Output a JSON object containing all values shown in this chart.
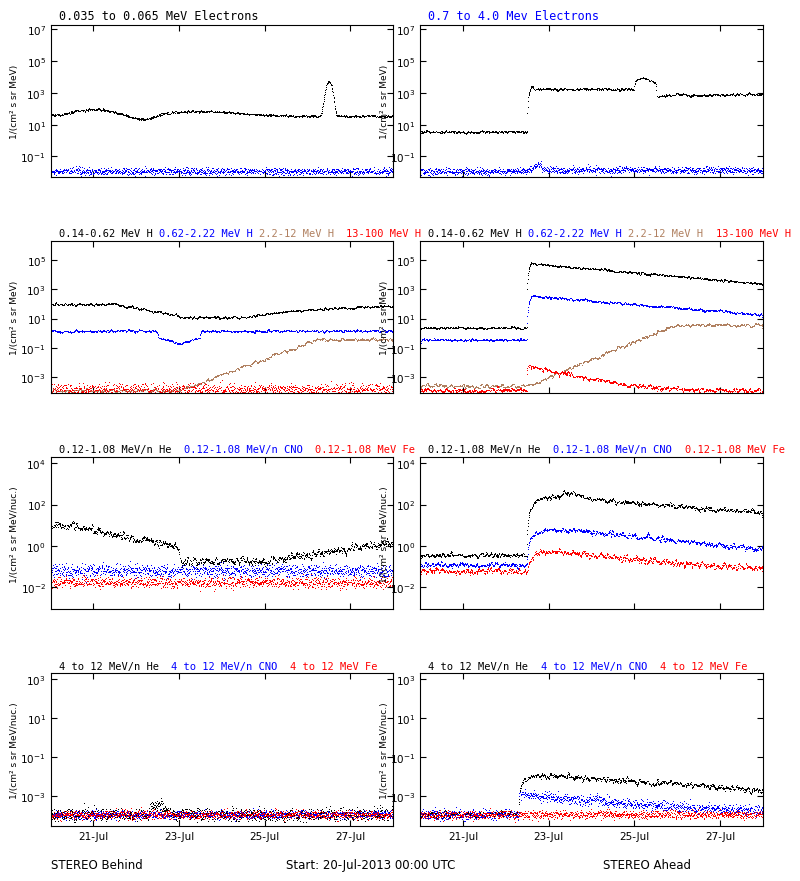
{
  "row0_titles_left": [
    {
      "text": "0.035 to 0.065 MeV Electrons",
      "color": "black"
    }
  ],
  "row0_titles_right": [
    {
      "text": "0.7 to 4.0 Mev Electrons",
      "color": "blue"
    }
  ],
  "row1_titles_left": [
    {
      "text": "0.14-0.62 MeV H ",
      "color": "black"
    },
    {
      "text": "0.62-2.22 MeV H ",
      "color": "blue"
    },
    {
      "text": "2.2-12 MeV H  ",
      "color": "#b08060"
    },
    {
      "text": "13-100 MeV H",
      "color": "red"
    }
  ],
  "row1_titles_right": [
    {
      "text": "0.14-0.62 MeV H ",
      "color": "black"
    },
    {
      "text": "0.62-2.22 MeV H ",
      "color": "blue"
    },
    {
      "text": "2.2-12 MeV H  ",
      "color": "#b08060"
    },
    {
      "text": "13-100 MeV H",
      "color": "red"
    }
  ],
  "row2_titles_left": [
    {
      "text": "0.12-1.08 MeV/n He  ",
      "color": "black"
    },
    {
      "text": "0.12-1.08 MeV/n CNO  ",
      "color": "blue"
    },
    {
      "text": "0.12-1.08 MeV Fe",
      "color": "red"
    }
  ],
  "row2_titles_right": [
    {
      "text": "0.12-1.08 MeV/n He  ",
      "color": "black"
    },
    {
      "text": "0.12-1.08 MeV/n CNO  ",
      "color": "blue"
    },
    {
      "text": "0.12-1.08 MeV Fe",
      "color": "red"
    }
  ],
  "row3_titles_left": [
    {
      "text": "4 to 12 MeV/n He  ",
      "color": "black"
    },
    {
      "text": "4 to 12 MeV/n CNO  ",
      "color": "blue"
    },
    {
      "text": "4 to 12 MeV Fe",
      "color": "red"
    }
  ],
  "row3_titles_right": [
    {
      "text": "4 to 12 MeV/n He  ",
      "color": "black"
    },
    {
      "text": "4 to 12 MeV/n CNO  ",
      "color": "blue"
    },
    {
      "text": "4 to 12 MeV Fe",
      "color": "red"
    }
  ],
  "ylabel_elec": "1/(cm² s sr MeV)",
  "ylabel_H": "1/(cm² s sr MeV)",
  "ylabel_heavy": "1/(cm² s sr MeV/nuc.)",
  "xlabel_center": "Start: 20-Jul-2013 00:00 UTC",
  "xlabel_left": "STEREO Behind",
  "xlabel_right": "STEREO Ahead",
  "xtick_labels": [
    "21-Jul",
    "23-Jul",
    "25-Jul",
    "27-Jul"
  ],
  "xtick_pos": [
    1,
    3,
    5,
    7
  ],
  "xlim": [
    0,
    8
  ]
}
